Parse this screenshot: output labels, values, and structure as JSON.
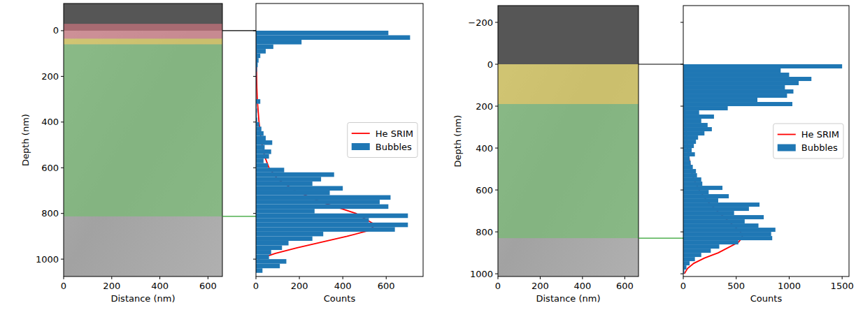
{
  "chart_data": [
    {
      "type": "image",
      "xlabel": "Distance (nm)",
      "ylabel": "Depth (nm)",
      "xlim": [
        0,
        660
      ],
      "ylim": [
        1076,
        -119
      ],
      "xticks": [
        0,
        200,
        400,
        600
      ],
      "yticks": [
        0,
        200,
        400,
        600,
        800,
        1000
      ],
      "bands": [
        {
          "from": -30,
          "to": 35,
          "color": "#e07a86"
        },
        {
          "from": 35,
          "to": 60,
          "color": "#e6d24a"
        },
        {
          "from": 60,
          "to": 813,
          "color": "#6fbf6a"
        }
      ],
      "guides": [
        {
          "value": 0,
          "color": "#000000"
        },
        {
          "value": 813,
          "color": "#2ca02c"
        }
      ]
    },
    {
      "type": "histogram",
      "orientation": "horizontal",
      "xlabel": "Counts",
      "xlim": [
        0,
        770
      ],
      "ylim": [
        1076,
        -119
      ],
      "xticks": [
        0,
        200,
        400,
        600
      ],
      "yticks": [
        0,
        200,
        400,
        600,
        800,
        1000
      ],
      "tick_labels": "x",
      "legend": "center right",
      "series": [
        {
          "name": "He SRIM",
          "type": "line",
          "color": "#ff0000",
          "x": [
            0,
            100,
            200,
            250,
            300,
            350,
            400,
            450,
            500,
            550,
            600,
            650,
            700,
            750,
            800,
            850,
            875,
            900,
            950,
            975,
            1000
          ],
          "values": [
            1,
            2,
            3,
            4,
            6,
            10,
            14,
            20,
            28,
            40,
            60,
            100,
            180,
            300,
            460,
            550,
            520,
            420,
            190,
            90,
            10
          ]
        },
        {
          "name": "Bubbles",
          "type": "bar",
          "color": "#1f77b4",
          "bins": [
            0,
            20,
            40,
            60,
            80,
            100,
            120,
            140,
            160,
            180,
            200,
            220,
            240,
            260,
            280,
            300,
            320,
            340,
            360,
            380,
            400,
            420,
            440,
            460,
            480,
            500,
            520,
            540,
            560,
            580,
            600,
            620,
            640,
            660,
            680,
            700,
            720,
            740,
            760,
            780,
            800,
            820,
            840,
            860,
            880,
            900,
            920,
            940,
            960,
            980,
            1000,
            1020,
            1040,
            1060
          ],
          "values": [
            610,
            710,
            210,
            80,
            45,
            20,
            12,
            8,
            5,
            3,
            2,
            2,
            1,
            1,
            1,
            20,
            3,
            5,
            4,
            6,
            15,
            25,
            35,
            45,
            75,
            40,
            70,
            60,
            35,
            55,
            130,
            360,
            300,
            260,
            400,
            340,
            620,
            570,
            610,
            270,
            700,
            520,
            700,
            640,
            310,
            260,
            150,
            120,
            70,
            60,
            140,
            110,
            30
          ]
        }
      ]
    },
    {
      "type": "image",
      "xlabel": "Distance (nm)",
      "ylabel": "Depth (nm)",
      "xlim": [
        0,
        665
      ],
      "ylim": [
        1013,
        -280
      ],
      "xticks": [
        0,
        200,
        400,
        600
      ],
      "yticks": [
        {
          "value": -200,
          "label": "−200"
        },
        0,
        200,
        400,
        600,
        800,
        1000
      ],
      "bands": [
        {
          "from": 0,
          "to": 190,
          "color": "#e6d24a"
        },
        {
          "from": 190,
          "to": 830,
          "color": "#6fbf6a"
        }
      ],
      "guides": [
        {
          "value": 0,
          "color": "#000000"
        },
        {
          "value": 830,
          "color": "#2ca02c"
        }
      ]
    },
    {
      "type": "histogram",
      "orientation": "horizontal",
      "xlabel": "Counts",
      "xlim": [
        0,
        1565
      ],
      "ylim": [
        1013,
        -280
      ],
      "xticks": [
        0,
        500,
        1000,
        1500
      ],
      "yticks": [
        {
          "value": -200,
          "label": "−200"
        },
        0,
        200,
        400,
        600,
        800,
        1000
      ],
      "tick_labels": "x",
      "legend": "center right",
      "series": [
        {
          "name": "He SRIM",
          "type": "line",
          "color": "#ff0000",
          "x": [
            0,
            100,
            200,
            300,
            400,
            500,
            550,
            600,
            650,
            700,
            750,
            800,
            825,
            850,
            900,
            925,
            950,
            975,
            1000
          ],
          "values": [
            5,
            5,
            10,
            25,
            40,
            70,
            100,
            150,
            220,
            320,
            430,
            540,
            560,
            520,
            330,
            200,
            100,
            40,
            10
          ]
        },
        {
          "name": "Bubbles",
          "type": "bar",
          "color": "#1f77b4",
          "bins": [
            0,
            20,
            40,
            60,
            80,
            100,
            120,
            140,
            160,
            180,
            200,
            220,
            240,
            260,
            280,
            300,
            320,
            340,
            360,
            380,
            400,
            420,
            440,
            460,
            480,
            500,
            520,
            540,
            560,
            580,
            600,
            620,
            640,
            660,
            680,
            700,
            720,
            740,
            760,
            780,
            800,
            820,
            840,
            860,
            880,
            900,
            920,
            940,
            960,
            980,
            1000
          ],
          "values": [
            1500,
            920,
            1000,
            1210,
            1090,
            960,
            1040,
            980,
            700,
            1030,
            420,
            150,
            290,
            170,
            230,
            270,
            200,
            140,
            120,
            100,
            80,
            110,
            60,
            70,
            90,
            120,
            130,
            170,
            180,
            370,
            240,
            430,
            330,
            720,
            620,
            480,
            760,
            580,
            710,
            870,
            830,
            840,
            520,
            340,
            260,
            170,
            110,
            60,
            30,
            10
          ]
        }
      ]
    }
  ]
}
